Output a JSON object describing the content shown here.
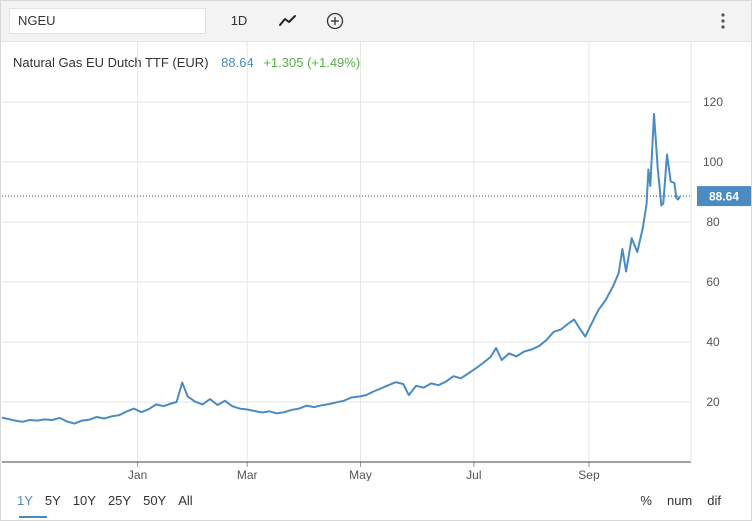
{
  "toolbar": {
    "symbol": "NGEU",
    "interval": "1D",
    "chart_type_icon": "line-chart-icon",
    "add_icon": "circle-plus-icon",
    "menu_icon": "vertical-ellipsis-icon"
  },
  "legend": {
    "name": "Natural Gas EU Dutch TTF (EUR)",
    "price": "88.64",
    "change": "+1.305 (+1.49%)"
  },
  "ranges": [
    "1Y",
    "5Y",
    "10Y",
    "25Y",
    "50Y",
    "All"
  ],
  "active_range": "1Y",
  "modes": [
    "%",
    "num",
    "dif"
  ],
  "colors": {
    "line": "#4a8cc2",
    "price_label_bg": "#4a8cc2",
    "change": "#58b048",
    "grid": "#e6e6e6"
  },
  "chart_data": {
    "type": "line",
    "title": "Natural Gas EU Dutch TTF (EUR)",
    "xlabel": "",
    "ylabel": "",
    "y_ticks": [
      20,
      40,
      60,
      80,
      100,
      120
    ],
    "ylim": [
      0,
      140
    ],
    "x_tick_labels": [
      "Jan",
      "Mar",
      "May",
      "Jul",
      "Sep"
    ],
    "x_tick_dates": [
      "2021-01-01",
      "2021-03-01",
      "2021-05-01",
      "2021-07-01",
      "2021-09-01"
    ],
    "x_range": [
      "2020-10-20",
      "2021-10-20"
    ],
    "grid": true,
    "last_value": 88.64,
    "last_value_label": "88.64",
    "series": [
      {
        "name": "",
        "points": [
          [
            "2020-10-20",
            14.8
          ],
          [
            "2020-10-23",
            14.4
          ],
          [
            "2020-10-27",
            13.8
          ],
          [
            "2020-10-31",
            13.4
          ],
          [
            "2020-11-04",
            14.0
          ],
          [
            "2020-11-08",
            13.8
          ],
          [
            "2020-11-12",
            14.2
          ],
          [
            "2020-11-16",
            14.0
          ],
          [
            "2020-11-20",
            14.7
          ],
          [
            "2020-11-24",
            13.5
          ],
          [
            "2020-11-28",
            12.8
          ],
          [
            "2020-12-02",
            13.8
          ],
          [
            "2020-12-06",
            14.1
          ],
          [
            "2020-12-10",
            15.0
          ],
          [
            "2020-12-14",
            14.5
          ],
          [
            "2020-12-18",
            15.2
          ],
          [
            "2020-12-22",
            15.6
          ],
          [
            "2020-12-26",
            16.8
          ],
          [
            "2020-12-30",
            17.8
          ],
          [
            "2021-01-03",
            16.6
          ],
          [
            "2021-01-07",
            17.6
          ],
          [
            "2021-01-11",
            19.2
          ],
          [
            "2021-01-15",
            18.6
          ],
          [
            "2021-01-19",
            19.5
          ],
          [
            "2021-01-22",
            20.0
          ],
          [
            "2021-01-25",
            26.5
          ],
          [
            "2021-01-28",
            21.8
          ],
          [
            "2021-02-01",
            20.1
          ],
          [
            "2021-02-05",
            19.2
          ],
          [
            "2021-02-09",
            21.0
          ],
          [
            "2021-02-13",
            19.0
          ],
          [
            "2021-02-17",
            20.4
          ],
          [
            "2021-02-21",
            18.6
          ],
          [
            "2021-02-25",
            17.8
          ],
          [
            "2021-03-01",
            17.5
          ],
          [
            "2021-03-05",
            17.0
          ],
          [
            "2021-03-09",
            16.5
          ],
          [
            "2021-03-13",
            16.9
          ],
          [
            "2021-03-17",
            16.2
          ],
          [
            "2021-03-21",
            16.6
          ],
          [
            "2021-03-25",
            17.4
          ],
          [
            "2021-03-29",
            17.8
          ],
          [
            "2021-04-02",
            18.8
          ],
          [
            "2021-04-06",
            18.3
          ],
          [
            "2021-04-10",
            18.9
          ],
          [
            "2021-04-14",
            19.3
          ],
          [
            "2021-04-18",
            19.9
          ],
          [
            "2021-04-22",
            20.4
          ],
          [
            "2021-04-26",
            21.5
          ],
          [
            "2021-04-30",
            21.8
          ],
          [
            "2021-05-04",
            22.3
          ],
          [
            "2021-05-08",
            23.5
          ],
          [
            "2021-05-12",
            24.5
          ],
          [
            "2021-05-16",
            25.6
          ],
          [
            "2021-05-20",
            26.6
          ],
          [
            "2021-05-24",
            26.0
          ],
          [
            "2021-05-27",
            22.3
          ],
          [
            "2021-05-31",
            25.4
          ],
          [
            "2021-06-04",
            24.8
          ],
          [
            "2021-06-08",
            26.2
          ],
          [
            "2021-06-12",
            25.6
          ],
          [
            "2021-06-16",
            26.8
          ],
          [
            "2021-06-20",
            28.6
          ],
          [
            "2021-06-24",
            27.9
          ],
          [
            "2021-06-28",
            29.5
          ],
          [
            "2021-07-02",
            31.2
          ],
          [
            "2021-07-06",
            33.0
          ],
          [
            "2021-07-10",
            35.0
          ],
          [
            "2021-07-13",
            38.0
          ],
          [
            "2021-07-16",
            34.0
          ],
          [
            "2021-07-20",
            36.2
          ],
          [
            "2021-07-24",
            35.2
          ],
          [
            "2021-07-28",
            36.8
          ],
          [
            "2021-08-01",
            37.5
          ],
          [
            "2021-08-05",
            38.6
          ],
          [
            "2021-08-09",
            40.6
          ],
          [
            "2021-08-13",
            43.4
          ],
          [
            "2021-08-17",
            44.2
          ],
          [
            "2021-08-21",
            46.2
          ],
          [
            "2021-08-24",
            47.5
          ],
          [
            "2021-08-27",
            44.5
          ],
          [
            "2021-08-30",
            41.8
          ],
          [
            "2021-09-02",
            45.6
          ],
          [
            "2021-09-06",
            50.6
          ],
          [
            "2021-09-10",
            54.0
          ],
          [
            "2021-09-14",
            58.6
          ],
          [
            "2021-09-17",
            63.0
          ],
          [
            "2021-09-19",
            71.0
          ],
          [
            "2021-09-21",
            63.5
          ],
          [
            "2021-09-24",
            74.6
          ],
          [
            "2021-09-27",
            70.0
          ],
          [
            "2021-09-30",
            78.0
          ],
          [
            "2021-10-02",
            86.0
          ],
          [
            "2021-10-03",
            97.5
          ],
          [
            "2021-10-04",
            92.0
          ],
          [
            "2021-10-06",
            116.0
          ],
          [
            "2021-10-08",
            98.0
          ],
          [
            "2021-10-10",
            85.5
          ],
          [
            "2021-10-11",
            86.2
          ],
          [
            "2021-10-13",
            102.5
          ],
          [
            "2021-10-15",
            93.5
          ],
          [
            "2021-10-17",
            93.0
          ],
          [
            "2021-10-18",
            88.0
          ],
          [
            "2021-10-19",
            87.5
          ],
          [
            "2021-10-20",
            88.64
          ]
        ]
      }
    ]
  }
}
